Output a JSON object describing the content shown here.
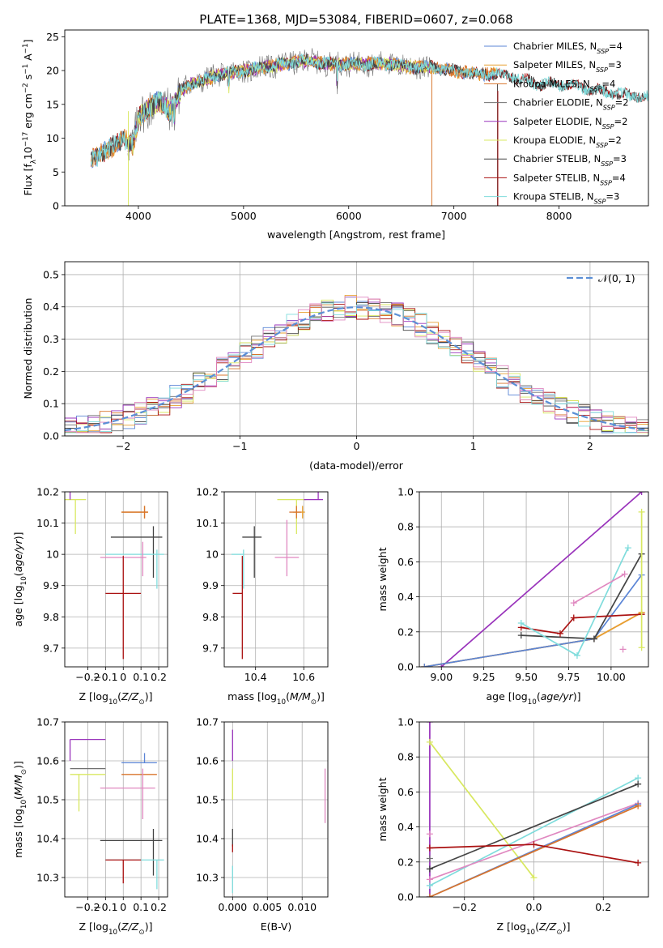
{
  "colors": {
    "Chabrier MILES": "#5b85d6",
    "Salpeter MILES": "#e8a030",
    "Kroupa MILES": "#d8742c",
    "Chabrier ELODIE": "#707070",
    "Salpeter ELODIE": "#9933bb",
    "Kroupa ELODIE": "#d8e860",
    "Chabrier STELIB": "#444444",
    "Salpeter STELIB": "#aa1111",
    "Kroupa STELIB": "#7fdcdc",
    "extra_pink": "#e088c0",
    "normal": "#5b8fd6",
    "grid": "#b0b0b0"
  },
  "chart_data": [
    {
      "id": "spectrum",
      "type": "line",
      "title": "PLATE=1368, MJD=53084, FIBERID=0607, z=0.068",
      "xlabel": "wavelength [Angstrom, rest frame]",
      "ylabel_parts": [
        "Flux [f",
        "λ",
        "10",
        "−17",
        " erg cm",
        "−2",
        " s",
        "−1",
        " A",
        "−1",
        "]"
      ],
      "xlim": [
        3300,
        8850
      ],
      "ylim": [
        0,
        26
      ],
      "xticks": [
        4000,
        5000,
        6000,
        7000,
        8000
      ],
      "yticks": [
        0,
        5,
        10,
        15,
        20,
        25
      ],
      "legend": {
        "placement": "right",
        "entries": [
          {
            "name": "Chabrier MILES",
            "nssp": "4"
          },
          {
            "name": "Salpeter MILES",
            "nssp": "3"
          },
          {
            "name": "Kroupa MILES",
            "nssp": "4"
          },
          {
            "name": "Chabrier ELODIE",
            "nssp": "2"
          },
          {
            "name": "Salpeter ELODIE",
            "nssp": "2"
          },
          {
            "name": "Kroupa ELODIE",
            "nssp": "2"
          },
          {
            "name": "Chabrier STELIB",
            "nssp": "3"
          },
          {
            "name": "Salpeter STELIB",
            "nssp": "4"
          },
          {
            "name": "Kroupa STELIB",
            "nssp": "3"
          }
        ]
      },
      "continuum": {
        "x": [
          3550,
          3700,
          3850,
          3950,
          4000,
          4100,
          4200,
          4300,
          4400,
          4500,
          4600,
          4800,
          5000,
          5200,
          5400,
          5600,
          5800,
          6000,
          6200,
          6400,
          6600,
          6800,
          7000,
          7200,
          7400,
          7600,
          7800,
          8000,
          8200,
          8400,
          8600,
          8850
        ],
        "y": [
          7,
          8,
          10,
          9,
          13,
          14.5,
          15.5,
          14,
          17,
          18,
          18.5,
          19.5,
          20,
          20.5,
          21,
          21.5,
          21,
          21,
          21,
          21,
          20.5,
          20.5,
          20,
          19.5,
          19.5,
          19,
          18,
          18,
          17.5,
          17,
          16.5,
          16
        ]
      }
    },
    {
      "id": "residuals",
      "type": "histogram",
      "xlabel": "(data-model)/error",
      "ylabel": "Normed distribution",
      "xlim": [
        -2.5,
        2.5
      ],
      "ylim": [
        0,
        0.54
      ],
      "xticks": [
        -2,
        -1,
        0,
        1,
        2
      ],
      "yticks": [
        0.0,
        0.1,
        0.2,
        0.3,
        0.4,
        0.5
      ],
      "bin_width": 0.1,
      "legend_label": "𝒩(0, 1)"
    },
    {
      "id": "age_vs_Z",
      "type": "errorbar",
      "xlabel": "Z [log10(Z/Z⊙)]",
      "ylabel": "age  [log10(age/yr)]",
      "xlim": [
        -0.33,
        0.25
      ],
      "ylim": [
        9.64,
        10.2
      ],
      "xticks": [
        -0.2,
        -0.1,
        0.0,
        0.1,
        0.2
      ],
      "yticks": [
        9.7,
        9.8,
        9.9,
        10.0,
        10.1,
        10.2
      ],
      "points": [
        {
          "series": "Kroupa ELODIE",
          "x": -0.27,
          "y": 10.175,
          "xe": [
            0.2,
            0.06
          ],
          "ye": [
            0.11,
            0.0
          ]
        },
        {
          "series": "Salpeter ELODIE",
          "x": -0.3,
          "y": 10.175,
          "xe": [
            0.0,
            0.0
          ],
          "ye": [
            0.0,
            0.07
          ]
        },
        {
          "series": "Salpeter MILES",
          "x": 0.12,
          "y": 10.135,
          "xe": [
            0.13,
            0.02
          ],
          "ye": [
            0.02,
            0.02
          ]
        },
        {
          "series": "Kroupa MILES",
          "x": 0.12,
          "y": 10.135,
          "xe": [
            0.13,
            0.02
          ],
          "ye": [
            0.02,
            0.02
          ]
        },
        {
          "series": "Chabrier STELIB",
          "x": 0.17,
          "y": 10.055,
          "xe": [
            0.24,
            0.05
          ],
          "ye": [
            0.13,
            0.035
          ]
        },
        {
          "series": "Kroupa STELIB",
          "x": 0.19,
          "y": 10.0,
          "xe": [
            0.29,
            0.04
          ],
          "ye": [
            0.11,
            0.015
          ]
        },
        {
          "series": "extra_pink",
          "x": 0.11,
          "y": 9.99,
          "xe": [
            0.24,
            0.02
          ],
          "ye": [
            0.06,
            0.05
          ]
        },
        {
          "series": "Salpeter STELIB",
          "x": 0.0,
          "y": 9.875,
          "xe": [
            0.1,
            0.1
          ],
          "ye": [
            0.21,
            0.12
          ]
        }
      ]
    },
    {
      "id": "age_vs_mass",
      "type": "errorbar",
      "xlabel": "mass [log10(M/M⊙)]",
      "ylabel": "",
      "xlim": [
        10.27,
        10.7
      ],
      "ylim": [
        9.64,
        10.2
      ],
      "xticks": [
        10.4,
        10.6
      ],
      "yticks": [
        9.7,
        9.8,
        9.9,
        10.0,
        10.1,
        10.2
      ],
      "points": [
        {
          "series": "Kroupa ELODIE",
          "x": 10.57,
          "y": 10.175,
          "xe": [
            0.08,
            0.04
          ],
          "ye": [
            0.11,
            0.0
          ]
        },
        {
          "series": "Salpeter ELODIE",
          "x": 10.66,
          "y": 10.175,
          "xe": [
            0.06,
            0.02
          ],
          "ye": [
            0.0,
            0.07
          ]
        },
        {
          "series": "Salpeter MILES",
          "x": 10.595,
          "y": 10.135,
          "xe": [
            0.04,
            0.01
          ],
          "ye": [
            0.02,
            0.02
          ]
        },
        {
          "series": "Kroupa MILES",
          "x": 10.57,
          "y": 10.135,
          "xe": [
            0.03,
            0.02
          ],
          "ye": [
            0.02,
            0.02
          ]
        },
        {
          "series": "Chabrier STELIB",
          "x": 10.395,
          "y": 10.055,
          "xe": [
            0.05,
            0.03
          ],
          "ye": [
            0.13,
            0.035
          ]
        },
        {
          "series": "Kroupa STELIB",
          "x": 10.35,
          "y": 10.0,
          "xe": [
            0.05,
            0.0
          ],
          "ye": [
            0.11,
            0.015
          ]
        },
        {
          "series": "extra_pink",
          "x": 10.53,
          "y": 9.99,
          "xe": [
            0.05,
            0.05
          ],
          "ye": [
            0.06,
            0.12
          ]
        },
        {
          "series": "Salpeter STELIB",
          "x": 10.345,
          "y": 9.875,
          "xe": [
            0.04,
            0.0
          ],
          "ye": [
            0.21,
            0.12
          ]
        }
      ]
    },
    {
      "id": "weight_vs_age",
      "type": "line",
      "xlabel": "age  [log10(age/yr)]",
      "ylabel": "mass weight",
      "xlim": [
        8.87,
        10.22
      ],
      "ylim": [
        0,
        1
      ],
      "xticks": [
        9.0,
        9.25,
        9.5,
        9.75,
        10.0
      ],
      "xtick_labels": [
        "9.00",
        "9.25",
        "9.50",
        "9.75",
        "10.00"
      ],
      "yticks": [
        0.0,
        0.2,
        0.4,
        0.6,
        0.8,
        1.0
      ],
      "series": [
        {
          "name": "Salpeter ELODIE",
          "x": [
            9.0,
            10.18
          ],
          "y": [
            0.0,
            1.0
          ]
        },
        {
          "name": "Kroupa MILES",
          "x": [
            8.9,
            9.9,
            10.18
          ],
          "y": [
            0.0,
            0.16,
            0.31
          ]
        },
        {
          "name": "Salpeter MILES",
          "x": [
            8.9,
            9.9,
            10.18
          ],
          "y": [
            0.0,
            0.16,
            0.31
          ]
        },
        {
          "name": "Chabrier MILES",
          "x": [
            8.9,
            9.9,
            10.18
          ],
          "y": [
            0.0,
            0.16,
            0.525
          ]
        },
        {
          "name": "Chabrier STELIB",
          "x": [
            9.47,
            9.9,
            10.18
          ],
          "y": [
            0.18,
            0.16,
            0.645
          ]
        },
        {
          "name": "Salpeter STELIB",
          "x": [
            9.47,
            9.7,
            9.78,
            10.18
          ],
          "y": [
            0.225,
            0.19,
            0.28,
            0.3
          ]
        },
        {
          "name": "Kroupa STELIB",
          "x": [
            9.47,
            9.8,
            10.1
          ],
          "y": [
            0.25,
            0.065,
            0.68
          ]
        },
        {
          "name": "extra_pink",
          "x": [
            9.78,
            10.08
          ],
          "y": [
            0.365,
            0.53
          ]
        },
        {
          "name": "extra_pink",
          "x": [
            10.07
          ],
          "y": [
            0.1
          ]
        },
        {
          "name": "Kroupa ELODIE",
          "x": [
            10.18,
            10.18
          ],
          "y": [
            0.11,
            0.885
          ]
        }
      ]
    },
    {
      "id": "mass_vs_Z",
      "type": "errorbar",
      "xlabel": "Z [log10(Z/Z⊙)]",
      "ylabel": "mass [log10(M/M⊙)]",
      "xlim": [
        -0.33,
        0.25
      ],
      "ylim": [
        10.25,
        10.7
      ],
      "xticks": [
        -0.2,
        -0.1,
        0.0,
        0.1,
        0.2
      ],
      "yticks": [
        10.3,
        10.4,
        10.5,
        10.6,
        10.7
      ],
      "points": [
        {
          "series": "Salpeter ELODIE",
          "x": -0.3,
          "y": 10.655,
          "xe": [
            0.0,
            0.2
          ],
          "ye": [
            0.055,
            0.0
          ]
        },
        {
          "series": "Chabrier MILES",
          "x": 0.12,
          "y": 10.595,
          "xe": [
            0.13,
            0.07
          ],
          "ye": [
            0.0,
            0.025
          ]
        },
        {
          "series": "Chabrier ELODIE",
          "x": -0.3,
          "y": 10.58,
          "xe": [
            0.0,
            0.2
          ],
          "ye": [
            0.0,
            0.0
          ]
        },
        {
          "series": "Kroupa MILES",
          "x": 0.12,
          "y": 10.565,
          "xe": [
            0.13,
            0.07
          ],
          "ye": [
            0.0,
            0.0
          ]
        },
        {
          "series": "Kroupa ELODIE",
          "x": -0.3,
          "y": 10.565,
          "xe": [
            0.0,
            0.2
          ],
          "ye": [
            0.0,
            0.0
          ]
        },
        {
          "series": "Kroupa ELODIE",
          "x": -0.25,
          "y": 10.565,
          "xe": [
            0.0,
            0.0
          ],
          "ye": [
            0.095,
            0.0
          ]
        },
        {
          "series": "extra_pink",
          "x": 0.11,
          "y": 10.53,
          "xe": [
            0.24,
            0.07
          ],
          "ye": [
            0.08,
            0.05
          ]
        },
        {
          "series": "Chabrier STELIB",
          "x": 0.17,
          "y": 10.395,
          "xe": [
            0.3,
            0.05
          ],
          "ye": [
            0.09,
            0.03
          ]
        },
        {
          "series": "Kroupa STELIB",
          "x": 0.19,
          "y": 10.345,
          "xe": [
            0.29,
            0.04
          ],
          "ye": [
            0.075,
            0.0
          ]
        },
        {
          "series": "Salpeter STELIB",
          "x": 0.0,
          "y": 10.345,
          "xe": [
            0.1,
            0.1
          ],
          "ye": [
            0.06,
            0.0
          ]
        }
      ]
    },
    {
      "id": "mass_vs_ebv",
      "type": "errorbar",
      "xlabel": "E(B-V)",
      "ylabel": "",
      "xlim": [
        -0.0012,
        0.0137
      ],
      "ylim": [
        10.25,
        10.7
      ],
      "xticks": [
        0.0,
        0.005,
        0.01
      ],
      "xtick_labels": [
        "0.000",
        "0.005",
        "0.010"
      ],
      "yticks": [
        10.3,
        10.4,
        10.5,
        10.6,
        10.7
      ],
      "points": [
        {
          "series": "Salpeter ELODIE",
          "x": 0.0,
          "y": 10.64,
          "xe": [
            0,
            0
          ],
          "ye": [
            0.04,
            0.04
          ]
        },
        {
          "series": "Kroupa ELODIE",
          "x": 0.0,
          "y": 10.54,
          "xe": [
            0,
            0
          ],
          "ye": [
            0.04,
            0.04
          ]
        },
        {
          "series": "Chabrier STELIB",
          "x": 0.0,
          "y": 10.4,
          "xe": [
            0,
            0
          ],
          "ye": [
            0.02,
            0.025
          ]
        },
        {
          "series": "Salpeter STELIB",
          "x": 0.0,
          "y": 10.375,
          "xe": [
            0,
            0
          ],
          "ye": [
            0.01,
            0.01
          ]
        },
        {
          "series": "Kroupa STELIB",
          "x": 0.0,
          "y": 10.3,
          "xe": [
            0,
            0
          ],
          "ye": [
            0.04,
            0.03
          ]
        },
        {
          "series": "extra_pink",
          "x": 0.0133,
          "y": 10.51,
          "xe": [
            0,
            0
          ],
          "ye": [
            0.07,
            0.07
          ]
        }
      ]
    },
    {
      "id": "weight_vs_Z",
      "type": "line",
      "xlabel": "Z [log10(Z/Z⊙)]",
      "ylabel": "mass weight",
      "xlim": [
        -0.33,
        0.33
      ],
      "ylim": [
        0,
        1
      ],
      "xticks": [
        -0.2,
        0.0,
        0.2
      ],
      "xtick_labels": [
        "−0.2",
        "0.0",
        "0.2"
      ],
      "yticks": [
        0.0,
        0.2,
        0.4,
        0.6,
        0.8,
        1.0
      ],
      "series": [
        {
          "name": "Salpeter ELODIE",
          "x": [
            -0.3,
            -0.3
          ],
          "y": [
            0.0,
            1.0
          ]
        },
        {
          "name": "Kroupa ELODIE",
          "x": [
            -0.3,
            0.0
          ],
          "y": [
            0.885,
            0.11
          ]
        },
        {
          "name": "Kroupa STELIB",
          "x": [
            -0.3,
            0.3
          ],
          "y": [
            0.065,
            0.68
          ]
        },
        {
          "name": "Chabrier STELIB",
          "x": [
            -0.3,
            0.3
          ],
          "y": [
            0.16,
            0.645
          ]
        },
        {
          "name": "extra_pink",
          "x": [
            -0.3,
            0.3
          ],
          "y": [
            0.1,
            0.535
          ]
        },
        {
          "name": "Chabrier MILES",
          "x": [
            -0.3,
            0.3
          ],
          "y": [
            0.0,
            0.53
          ]
        },
        {
          "name": "Kroupa MILES",
          "x": [
            -0.3,
            0.3
          ],
          "y": [
            0.0,
            0.52
          ]
        },
        {
          "name": "Salpeter STELIB",
          "x": [
            -0.3,
            0.0,
            0.3
          ],
          "y": [
            0.28,
            0.3,
            0.195
          ]
        },
        {
          "name": "Chabrier ELODIE",
          "x": [
            -0.3
          ],
          "y": [
            0.22
          ]
        },
        {
          "name": "extra_pink",
          "x": [
            -0.3
          ],
          "y": [
            0.36
          ]
        }
      ]
    }
  ]
}
